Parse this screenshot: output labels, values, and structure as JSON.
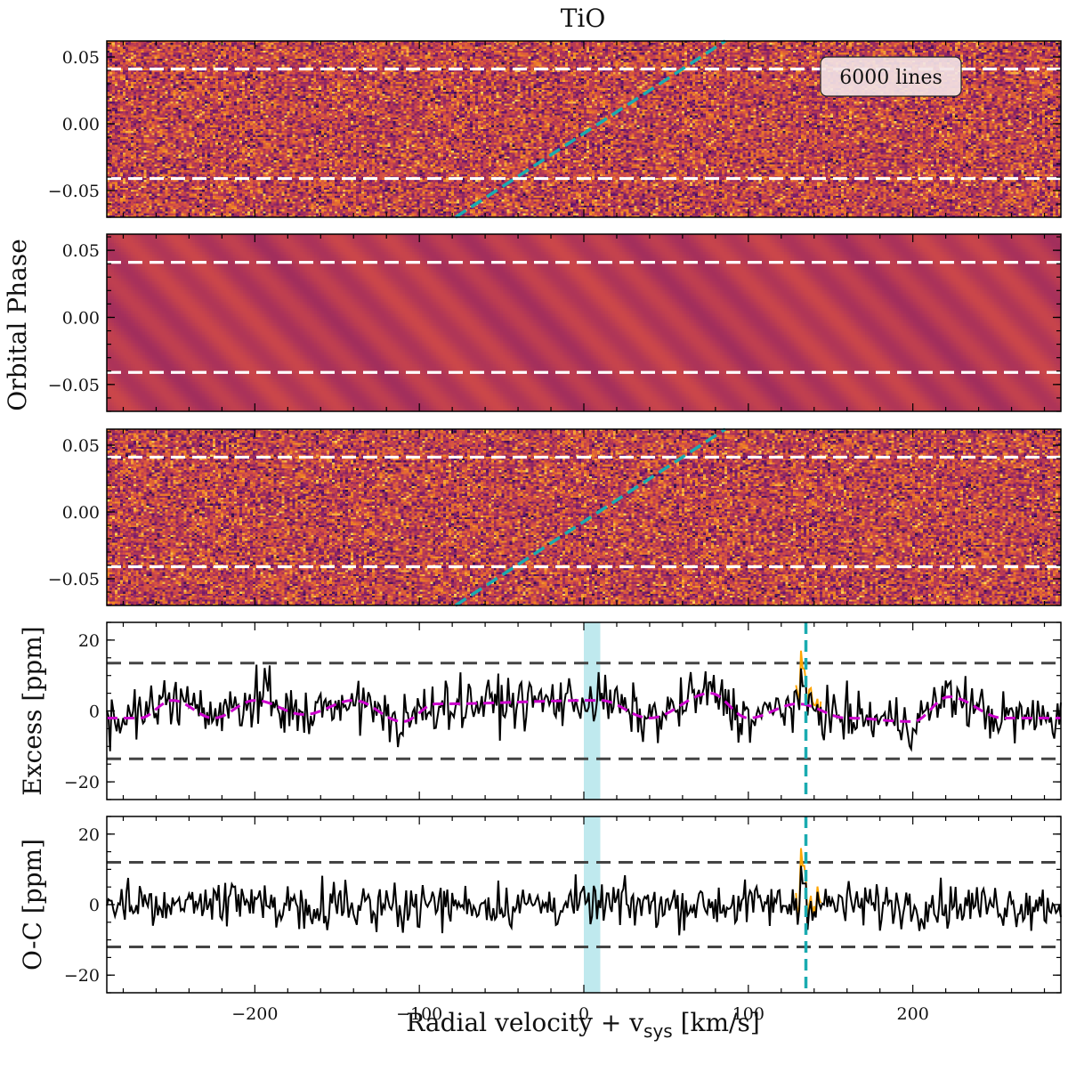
{
  "chart_data": {
    "type": "figure",
    "title": "TiO",
    "x_axis": {
      "label_main": "Radial velocity + v",
      "label_sub": "sys",
      "label_unit": " [km/s]",
      "range": [
        -290,
        290
      ],
      "ticks": [
        -200,
        -100,
        0,
        100,
        200
      ],
      "tick_labels": [
        "−200",
        "−100",
        "0",
        "100",
        "200"
      ]
    },
    "shared_phase_ylabel": "Orbital Phase",
    "panels": [
      {
        "id": "observed-map",
        "type": "heatmap",
        "content": "noise",
        "colormap": "inferno",
        "y_range": [
          -0.07,
          0.062
        ],
        "y_ticks": [
          0.05,
          0.0,
          -0.05
        ],
        "y_tick_labels": [
          "0.05",
          "0.00",
          "−0.05"
        ],
        "transit_lines_phase": [
          -0.041,
          0.041
        ],
        "planet_trail": {
          "phase": [
            -0.07,
            0.062
          ],
          "velocity": [
            -78,
            86
          ]
        },
        "annotation": "6000 lines"
      },
      {
        "id": "model-map",
        "type": "heatmap",
        "content": "smooth diagonal stripes",
        "colormap": "inferno",
        "y_range": [
          -0.07,
          0.062
        ],
        "y_ticks": [
          0.05,
          0.0,
          -0.05
        ],
        "y_tick_labels": [
          "0.05",
          "0.00",
          "−0.05"
        ],
        "transit_lines_phase": [
          -0.041,
          0.041
        ]
      },
      {
        "id": "residual-map",
        "type": "heatmap",
        "content": "noise",
        "colormap": "inferno",
        "y_range": [
          -0.07,
          0.062
        ],
        "y_ticks": [
          0.05,
          0.0,
          -0.05
        ],
        "y_tick_labels": [
          "0.05",
          "0.00",
          "−0.05"
        ],
        "transit_lines_phase": [
          -0.041,
          0.041
        ],
        "planet_trail": {
          "phase": [
            -0.07,
            0.062
          ],
          "velocity": [
            -78,
            86
          ]
        }
      },
      {
        "id": "excess",
        "type": "line",
        "ylabel": "Excess [ppm]",
        "y_range": [
          -25,
          25
        ],
        "y_ticks": [
          20,
          0,
          -20
        ],
        "y_tick_labels": [
          "20",
          "0",
          "−20"
        ],
        "sigma_lines": [
          13.5,
          -13.5
        ],
        "shaded_velocity_band": [
          0,
          10
        ],
        "vertical_line_velocity": 135,
        "series": [
          {
            "name": "",
            "color": "#000000",
            "style": "solid",
            "noise_amplitude": 4.5
          },
          {
            "name": "",
            "color": "#ffa500",
            "style": "solid"
          },
          {
            "name": "",
            "color": "#cc00cc",
            "style": "dashed",
            "type": "sinusoid",
            "peaks": [
              [
                -250,
                3
              ],
              [
                -200,
                3
              ],
              [
                -140,
                3
              ],
              [
                -90,
                2
              ],
              [
                10,
                3
              ],
              [
                77,
                5
              ],
              [
                130,
                2
              ],
              [
                222,
                4
              ]
            ],
            "troughs": [
              [
                -270,
                -2
              ],
              [
                -225,
                -2
              ],
              [
                -170,
                -1
              ],
              [
                -110,
                -3
              ],
              [
                40,
                -2
              ],
              [
                100,
                -2
              ],
              [
                160,
                -2
              ],
              [
                200,
                -3
              ],
              [
                255,
                -2
              ]
            ]
          }
        ],
        "spike": {
          "velocity": 133,
          "value": 19
        }
      },
      {
        "id": "o-c",
        "type": "line",
        "ylabel": "O-C [ppm]",
        "y_range": [
          -25,
          25
        ],
        "y_ticks": [
          20,
          0,
          -20
        ],
        "y_tick_labels": [
          "20",
          "0",
          "−20"
        ],
        "sigma_lines": [
          12,
          -12
        ],
        "shaded_velocity_band": [
          0,
          10
        ],
        "vertical_line_velocity": 135,
        "series": [
          {
            "name": "",
            "color": "#000000",
            "style": "solid",
            "noise_amplitude": 4.0
          },
          {
            "name": "",
            "color": "#ffa500",
            "style": "solid"
          }
        ],
        "spike": {
          "velocity": 133,
          "value": 18
        }
      }
    ],
    "colors": {
      "trail": "#1aabb0",
      "transit_lines": "#ffffff",
      "sigma_lines": "#444444",
      "band": "#bfe9ee",
      "model_base": "#b8395d"
    }
  }
}
